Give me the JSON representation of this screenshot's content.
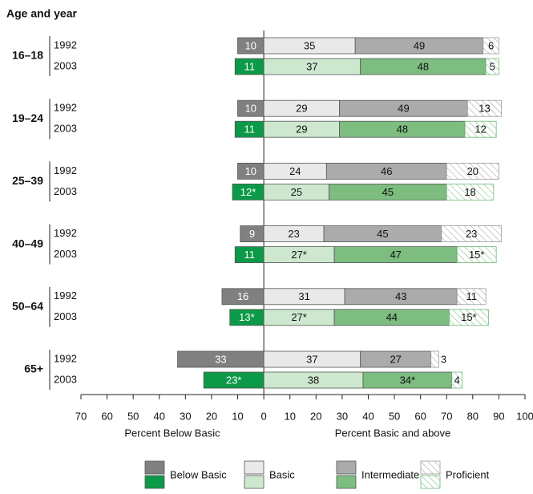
{
  "chart_data": {
    "type": "diverging_stacked_bar",
    "title": "Age and year",
    "categories": [
      "16–18",
      "19–24",
      "25–39",
      "40–49",
      "50–64",
      "65+"
    ],
    "years": [
      "1992",
      "2003"
    ],
    "series": [
      {
        "name": "Below Basic",
        "colors": [
          "#808080",
          "#0c9a48"
        ],
        "values": [
          [
            10,
            11
          ],
          [
            10,
            11
          ],
          [
            10,
            12
          ],
          [
            9,
            11
          ],
          [
            16,
            13
          ],
          [
            33,
            23
          ]
        ],
        "value_labels": [
          [
            "10",
            "11"
          ],
          [
            "10",
            "11"
          ],
          [
            "10",
            "12*"
          ],
          [
            "9",
            "11"
          ],
          [
            "16",
            "13*"
          ],
          [
            "33",
            "23*"
          ]
        ]
      },
      {
        "name": "Basic",
        "colors": [
          "#e9e9e9",
          "#cde8cf"
        ],
        "values": [
          [
            35,
            37
          ],
          [
            29,
            29
          ],
          [
            24,
            25
          ],
          [
            23,
            27
          ],
          [
            31,
            27
          ],
          [
            37,
            38
          ]
        ],
        "value_labels": [
          [
            "35",
            "37"
          ],
          [
            "29",
            "29"
          ],
          [
            "24",
            "25"
          ],
          [
            "23",
            "27*"
          ],
          [
            "31",
            "27*"
          ],
          [
            "37",
            "38"
          ]
        ]
      },
      {
        "name": "Intermediate",
        "colors": [
          "#ababab",
          "#7dbd80"
        ],
        "values": [
          [
            49,
            48
          ],
          [
            49,
            48
          ],
          [
            46,
            45
          ],
          [
            45,
            47
          ],
          [
            43,
            44
          ],
          [
            27,
            34
          ]
        ],
        "value_labels": [
          [
            "49",
            "48"
          ],
          [
            "49",
            "48"
          ],
          [
            "46",
            "45"
          ],
          [
            "45",
            "47"
          ],
          [
            "43",
            "44"
          ],
          [
            "27",
            "34*"
          ]
        ]
      },
      {
        "name": "Proficient",
        "colors": [
          "#9a9a9a",
          "#6fb774"
        ],
        "hatched": true,
        "values": [
          [
            6,
            5
          ],
          [
            13,
            12
          ],
          [
            20,
            18
          ],
          [
            23,
            15
          ],
          [
            11,
            15
          ],
          [
            3,
            4
          ]
        ],
        "value_labels": [
          [
            "6",
            "5"
          ],
          [
            "13",
            "12"
          ],
          [
            "20",
            "18"
          ],
          [
            "23",
            "15*"
          ],
          [
            "11",
            "15*"
          ],
          [
            "3",
            "4"
          ]
        ]
      }
    ],
    "xlim": [
      -70,
      100
    ],
    "xticks": [
      {
        "value": -70,
        "label": "70"
      },
      {
        "value": -60,
        "label": "60"
      },
      {
        "value": -50,
        "label": "50"
      },
      {
        "value": -40,
        "label": "40"
      },
      {
        "value": -30,
        "label": "30"
      },
      {
        "value": -20,
        "label": "20"
      },
      {
        "value": -10,
        "label": "10"
      },
      0,
      10,
      20,
      30,
      40,
      50,
      60,
      70,
      80,
      90,
      100
    ],
    "xlabel_left": "Percent Below Basic",
    "xlabel_right": "Percent Basic and above"
  }
}
